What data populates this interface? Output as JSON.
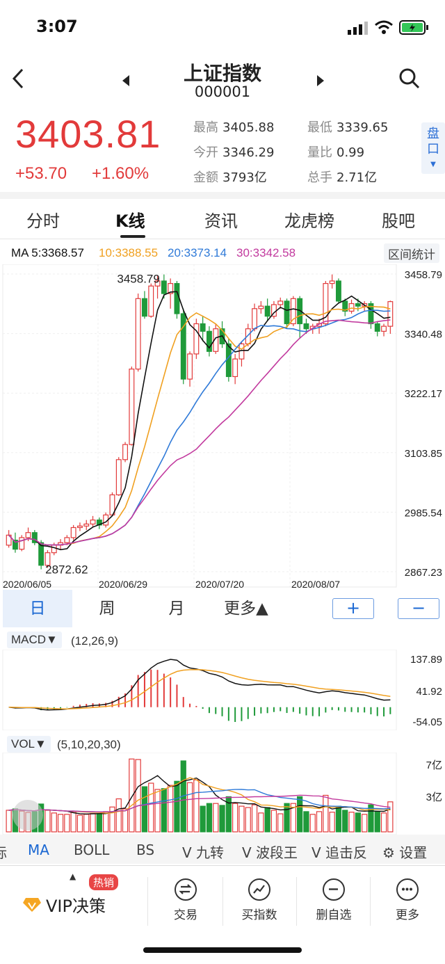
{
  "status": {
    "time": "3:07"
  },
  "header": {
    "title": "上证指数",
    "code": "000001"
  },
  "quote": {
    "price": "3403.81",
    "change": "+53.70",
    "change_pct": "+1.60%",
    "stats": [
      {
        "label": "最高",
        "value": "3405.88"
      },
      {
        "label": "最低",
        "value": "3339.65"
      },
      {
        "label": "今开",
        "value": "3346.29"
      },
      {
        "label": "量比",
        "value": "0.99"
      },
      {
        "label": "金额",
        "value": "3793亿"
      },
      {
        "label": "总手",
        "value": "2.71亿"
      }
    ],
    "pankou_label": "盘口"
  },
  "tabs": [
    "分时",
    "K线",
    "资讯",
    "龙虎榜",
    "股吧"
  ],
  "ma_legend": {
    "ma5": "MA 5:3368.57",
    "ma10": "10:3388.55",
    "ma20": "20:3373.14",
    "ma30": "30:3342.58",
    "range_stats": "区间统计"
  },
  "colors": {
    "up": "#e23a3a",
    "down": "#1f9a3a",
    "ma5": "#111111",
    "ma10": "#f0a020",
    "ma20": "#2f7ad8",
    "ma30": "#c23a9e",
    "accent": "#1a67d2"
  },
  "chart_data": [
    {
      "type": "candlestick",
      "y_ticks": [
        "3458.79",
        "3340.48",
        "3222.17",
        "3103.85",
        "2985.54",
        "2867.23"
      ],
      "ylim": [
        2867.23,
        3458.79
      ],
      "x_ticks": [
        "2020/06/05",
        "2020/06/29",
        "2020/07/20",
        "2020/08/07"
      ],
      "annotations": {
        "high": "3458.79",
        "low": "2872.62"
      },
      "candles": [
        [
          2920,
          2940,
          2950,
          2915
        ],
        [
          2930,
          2912,
          2945,
          2905
        ],
        [
          2912,
          2935,
          2940,
          2908
        ],
        [
          2935,
          2945,
          2955,
          2928
        ],
        [
          2945,
          2925,
          2950,
          2920
        ],
        [
          2925,
          2880,
          2930,
          2872
        ],
        [
          2880,
          2905,
          2910,
          2875
        ],
        [
          2905,
          2920,
          2925,
          2900
        ],
        [
          2920,
          2925,
          2932,
          2912
        ],
        [
          2925,
          2935,
          2940,
          2920
        ],
        [
          2935,
          2955,
          2960,
          2930
        ],
        [
          2955,
          2958,
          2965,
          2948
        ],
        [
          2958,
          2962,
          2970,
          2950
        ],
        [
          2962,
          2970,
          2978,
          2955
        ],
        [
          2970,
          2960,
          2975,
          2952
        ],
        [
          2960,
          2980,
          2985,
          2955
        ],
        [
          2980,
          3020,
          3025,
          2978
        ],
        [
          3020,
          3090,
          3095,
          3018
        ],
        [
          3090,
          3120,
          3125,
          3085
        ],
        [
          3120,
          3270,
          3275,
          3118
        ],
        [
          3270,
          3410,
          3420,
          3265
        ],
        [
          3410,
          3375,
          3425,
          3370
        ],
        [
          3375,
          3435,
          3440,
          3372
        ],
        [
          3435,
          3445,
          3455,
          3410
        ],
        [
          3445,
          3420,
          3458,
          3410
        ],
        [
          3420,
          3440,
          3450,
          3390
        ],
        [
          3440,
          3380,
          3445,
          3370
        ],
        [
          3380,
          3250,
          3390,
          3240
        ],
        [
          3250,
          3300,
          3305,
          3235
        ],
        [
          3300,
          3360,
          3370,
          3290
        ],
        [
          3360,
          3345,
          3375,
          3325
        ],
        [
          3345,
          3305,
          3355,
          3295
        ],
        [
          3305,
          3350,
          3360,
          3300
        ],
        [
          3350,
          3320,
          3365,
          3312
        ],
        [
          3320,
          3255,
          3330,
          3245
        ],
        [
          3255,
          3290,
          3300,
          3240
        ],
        [
          3290,
          3320,
          3325,
          3275
        ],
        [
          3320,
          3350,
          3360,
          3315
        ],
        [
          3350,
          3390,
          3400,
          3345
        ],
        [
          3390,
          3395,
          3405,
          3380
        ],
        [
          3395,
          3375,
          3410,
          3365
        ],
        [
          3375,
          3398,
          3405,
          3370
        ],
        [
          3398,
          3405,
          3412,
          3390
        ],
        [
          3405,
          3360,
          3410,
          3350
        ],
        [
          3360,
          3410,
          3415,
          3355
        ],
        [
          3410,
          3360,
          3415,
          3330
        ],
        [
          3360,
          3350,
          3370,
          3340
        ],
        [
          3350,
          3355,
          3360,
          3340
        ],
        [
          3355,
          3360,
          3370,
          3340
        ],
        [
          3360,
          3440,
          3445,
          3355
        ],
        [
          3440,
          3445,
          3458,
          3430
        ],
        [
          3445,
          3405,
          3450,
          3400
        ],
        [
          3405,
          3385,
          3410,
          3375
        ],
        [
          3385,
          3400,
          3408,
          3380
        ],
        [
          3400,
          3395,
          3410,
          3385
        ],
        [
          3395,
          3400,
          3405,
          3385
        ],
        [
          3400,
          3360,
          3405,
          3350
        ],
        [
          3360,
          3345,
          3365,
          3335
        ],
        [
          3345,
          3355,
          3360,
          3335
        ],
        [
          3355,
          3404,
          3406,
          3340
        ]
      ]
    },
    {
      "type": "line",
      "name": "MACD",
      "params": "(12,26,9)",
      "y_ticks": [
        "137.89",
        "41.92",
        "-54.05"
      ],
      "ylim": [
        -54.05,
        137.89
      ]
    },
    {
      "type": "bar",
      "name": "VOL",
      "params": "(5,10,20,30)",
      "y_ticks": [
        "7亿",
        "3亿"
      ]
    }
  ],
  "periods": {
    "items": [
      "日",
      "周",
      "月",
      "更多▲"
    ],
    "plus": "+",
    "minus": "−"
  },
  "indicators": {
    "macd_label": "MACD▼",
    "vol_label": "VOL▼",
    "tabs": [
      "标",
      "MA",
      "BOLL",
      "BS",
      "V 九转",
      "V 波段王",
      "V 追击反",
      "⚙ 设置"
    ]
  },
  "bottom": {
    "vip_label": "VIP决策",
    "vip_badge": "热销",
    "items": [
      "交易",
      "买指数",
      "删自选",
      "更多"
    ]
  }
}
